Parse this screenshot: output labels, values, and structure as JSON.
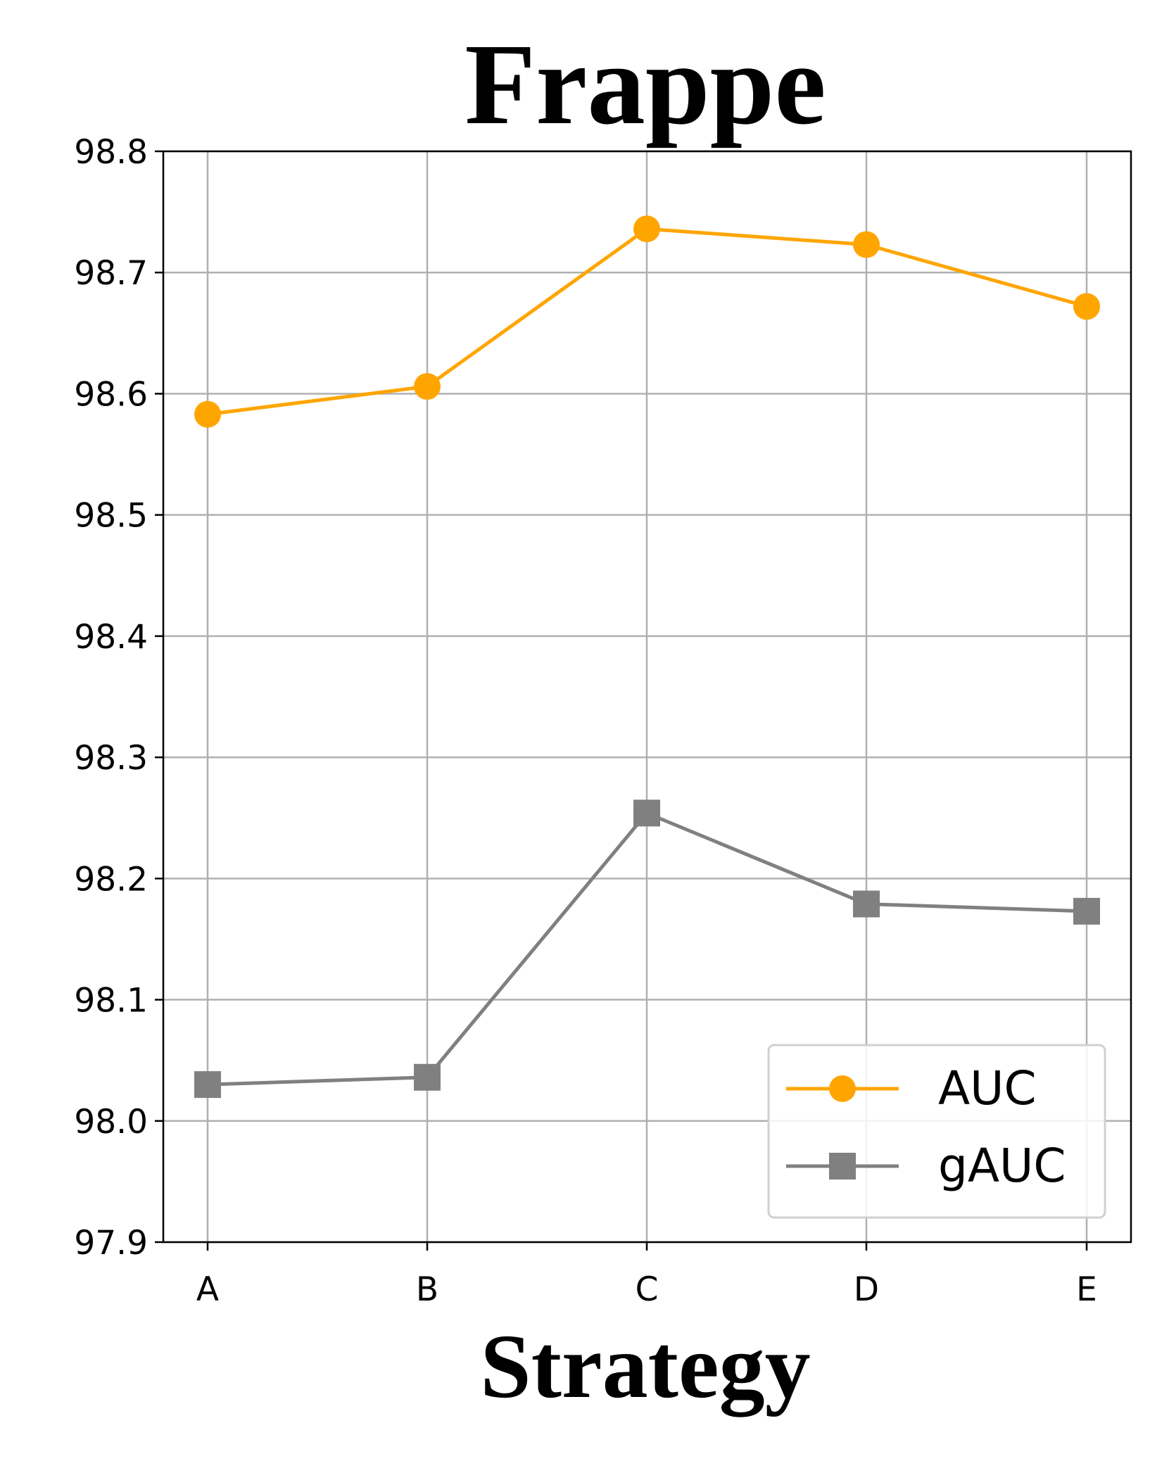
{
  "chart_data": {
    "type": "line",
    "title": "Frappe",
    "xlabel": "Strategy",
    "ylabel": "",
    "categories": [
      "A",
      "B",
      "C",
      "D",
      "E"
    ],
    "ylim": [
      97.9,
      98.8
    ],
    "yticks": [
      "98.8",
      "98.7",
      "98.6",
      "98.5",
      "98.4",
      "98.3",
      "98.2",
      "98.1",
      "98.0",
      "97.9"
    ],
    "grid": true,
    "legend_position": "bottom-right",
    "series": [
      {
        "name": "AUC",
        "color": "#FFA500",
        "marker": "circle",
        "values": [
          98.583,
          98.606,
          98.736,
          98.723,
          98.672
        ]
      },
      {
        "name": "gAUC",
        "color": "#808080",
        "marker": "square",
        "values": [
          98.03,
          98.036,
          98.254,
          98.179,
          98.173
        ]
      }
    ]
  }
}
